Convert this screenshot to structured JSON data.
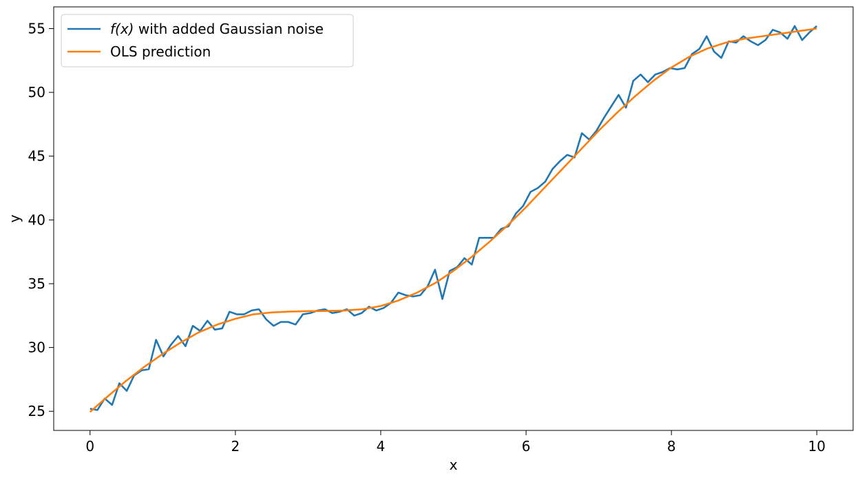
{
  "chart_data": {
    "type": "line",
    "xlabel": "x",
    "ylabel": "y",
    "xlim": [
      -0.5,
      10.5
    ],
    "ylim": [
      23.5,
      56.7
    ],
    "xticks": [
      0,
      2,
      4,
      6,
      8,
      10
    ],
    "yticks": [
      25,
      30,
      35,
      40,
      45,
      50,
      55
    ],
    "grid": false,
    "legend_position": "top-left",
    "legend": [
      {
        "label_main": "f(x)",
        "label_rest": " with added Gaussian noise"
      },
      {
        "label_main": "OLS prediction",
        "label_rest": ""
      }
    ],
    "series": [
      {
        "name": "f(x) with added Gaussian noise",
        "color": "#1f77b4",
        "x": [
          0.0,
          0.101,
          0.202,
          0.303,
          0.404,
          0.505,
          0.606,
          0.707,
          0.808,
          0.909,
          1.01,
          1.111,
          1.212,
          1.313,
          1.414,
          1.515,
          1.616,
          1.717,
          1.818,
          1.919,
          2.02,
          2.121,
          2.222,
          2.323,
          2.424,
          2.525,
          2.626,
          2.727,
          2.828,
          2.929,
          3.03,
          3.131,
          3.232,
          3.333,
          3.434,
          3.535,
          3.636,
          3.737,
          3.838,
          3.939,
          4.04,
          4.141,
          4.242,
          4.343,
          4.444,
          4.545,
          4.646,
          4.747,
          4.848,
          4.949,
          5.051,
          5.152,
          5.253,
          5.354,
          5.455,
          5.556,
          5.657,
          5.758,
          5.859,
          5.96,
          6.061,
          6.162,
          6.263,
          6.364,
          6.465,
          6.566,
          6.667,
          6.768,
          6.869,
          6.97,
          7.071,
          7.172,
          7.273,
          7.374,
          7.475,
          7.576,
          7.677,
          7.778,
          7.879,
          7.98,
          8.081,
          8.182,
          8.283,
          8.384,
          8.485,
          8.586,
          8.687,
          8.788,
          8.889,
          8.99,
          9.091,
          9.192,
          9.293,
          9.394,
          9.495,
          9.596,
          9.697,
          9.798,
          9.899,
          10.0
        ],
        "values": [
          25.2,
          25.1,
          26.0,
          25.5,
          27.2,
          26.6,
          27.8,
          28.2,
          28.3,
          30.6,
          29.3,
          30.2,
          30.9,
          30.1,
          31.7,
          31.3,
          32.1,
          31.4,
          31.5,
          32.8,
          32.6,
          32.6,
          32.9,
          33.0,
          32.2,
          31.7,
          32.0,
          32.0,
          31.8,
          32.6,
          32.7,
          32.9,
          33.0,
          32.7,
          32.8,
          33.0,
          32.5,
          32.7,
          33.2,
          32.9,
          33.1,
          33.5,
          34.3,
          34.1,
          34.0,
          34.1,
          34.8,
          36.1,
          33.8,
          36.0,
          36.3,
          37.0,
          36.5,
          38.6,
          38.6,
          38.6,
          39.3,
          39.5,
          40.5,
          41.1,
          42.2,
          42.5,
          43.0,
          44.0,
          44.6,
          45.1,
          44.9,
          46.8,
          46.3,
          47.0,
          48.0,
          48.9,
          49.8,
          48.8,
          50.9,
          51.4,
          50.8,
          51.4,
          51.6,
          51.9,
          51.8,
          51.9,
          53.0,
          53.4,
          54.4,
          53.2,
          52.7,
          54.0,
          53.9,
          54.4,
          54.0,
          53.7,
          54.1,
          54.9,
          54.7,
          54.2,
          55.2,
          54.1,
          54.7,
          55.2
        ]
      },
      {
        "name": "OLS prediction",
        "color": "#ff7f0e",
        "x": [
          0.0,
          0.25,
          0.5,
          0.75,
          1.0,
          1.25,
          1.5,
          1.75,
          2.0,
          2.25,
          2.5,
          2.75,
          3.0,
          3.25,
          3.5,
          3.75,
          4.0,
          4.25,
          4.5,
          4.75,
          5.0,
          5.25,
          5.5,
          5.75,
          6.0,
          6.25,
          6.5,
          6.75,
          7.0,
          7.25,
          7.5,
          7.75,
          8.0,
          8.25,
          8.5,
          8.75,
          9.0,
          9.25,
          9.5,
          9.75,
          10.0
        ],
        "values": [
          24.95,
          26.2,
          27.4,
          28.5,
          29.5,
          30.4,
          31.2,
          31.8,
          32.25,
          32.6,
          32.75,
          32.82,
          32.85,
          32.86,
          32.9,
          33.0,
          33.25,
          33.7,
          34.3,
          35.05,
          36.0,
          37.1,
          38.3,
          39.6,
          41.0,
          42.5,
          44.0,
          45.5,
          47.0,
          48.4,
          49.7,
          50.9,
          51.95,
          52.8,
          53.45,
          53.9,
          54.2,
          54.4,
          54.6,
          54.8,
          55.0
        ]
      }
    ]
  }
}
